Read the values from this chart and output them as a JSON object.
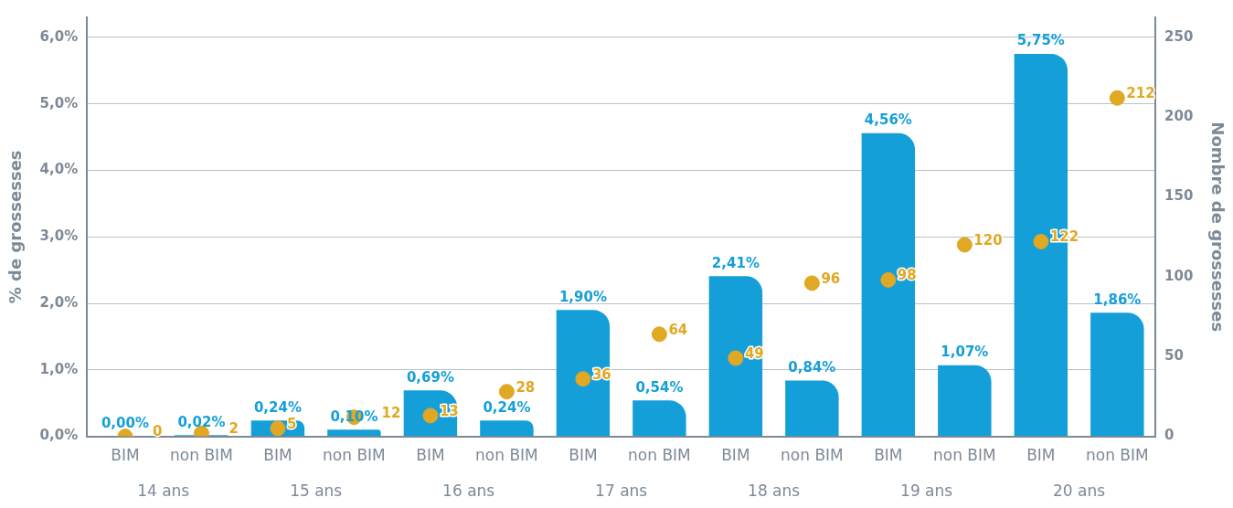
{
  "chart_data": {
    "type": "bar",
    "categories": [
      "BIM",
      "non BIM",
      "BIM",
      "non BIM",
      "BIM",
      "non BIM",
      "BIM",
      "non BIM",
      "BIM",
      "non BIM",
      "BIM",
      "non BIM",
      "BIM",
      "non BIM"
    ],
    "series": [
      {
        "type": "bar",
        "color": "#159fd9",
        "values": [
          0,
          0.02,
          0.24,
          0.1,
          0.69,
          0.24,
          1.9,
          0.54,
          2.41,
          0.84,
          4.56,
          1.07,
          5.75,
          1.86
        ],
        "value_labels": [
          "0,00%",
          "0,02%",
          "0,24%",
          "0,10%",
          "0,69%",
          "0,24%",
          "1,90%",
          "0,54%",
          "2,41%",
          "0,84%",
          "4,56%",
          "1,07%",
          "5,75%",
          "1,86%"
        ]
      },
      {
        "type": "scatter",
        "axis": "y2",
        "color": "#e0a823",
        "marker": "circle",
        "values": [
          0,
          2,
          5,
          12,
          13,
          28,
          36,
          64,
          49,
          96,
          98,
          120,
          122,
          212
        ],
        "value_labels": [
          "0",
          "2",
          "5",
          "12",
          "13",
          "28",
          "36",
          "64",
          "49",
          "96",
          "98",
          "120",
          "122",
          "212"
        ]
      }
    ],
    "ylabel": "% de grossesses",
    "y2label": "Nombre de grossesses",
    "ylim": [
      0,
      6.3
    ],
    "yticks": [
      {
        "value": 0,
        "label": "0,0%"
      },
      {
        "value": 1,
        "label": "1,0%"
      },
      {
        "value": 2,
        "label": "2,0%"
      },
      {
        "value": 3,
        "label": "3,0%"
      },
      {
        "value": 4,
        "label": "4,0%"
      },
      {
        "value": 5,
        "label": "5,0%"
      },
      {
        "value": 6,
        "label": "6,0%"
      }
    ],
    "y2lim": [
      0,
      262.5
    ],
    "y2ticks": [
      0,
      50,
      100,
      150,
      200,
      250
    ],
    "annotations": [
      "14 ans",
      "15 ans",
      "16 ans",
      "17 ans",
      "18 ans",
      "19 ans",
      "20 ans"
    ],
    "grid": "y",
    "legend": false
  }
}
